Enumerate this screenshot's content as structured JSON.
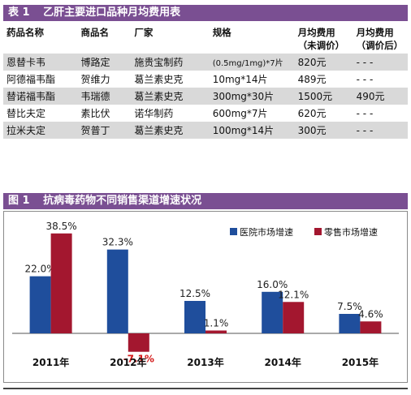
{
  "table": {
    "label": "表 1",
    "title": "乙肝主要进口品种月均费用表",
    "headers": {
      "name": "药品名称",
      "trade": "商品名",
      "manufacturer": "厂家",
      "spec": "规格",
      "before_1": "月均费用",
      "before_2": "（未调价）",
      "after_1": "月均费用",
      "after_2": "（调价后）"
    },
    "rows": [
      {
        "name": "恩替卡韦",
        "trade": "博路定",
        "manufacturer": "施贵宝制药",
        "spec": "(0.5mg/1mg)*7片",
        "before": "820元",
        "after": "- - -"
      },
      {
        "name": "阿德福韦酯",
        "trade": "贺维力",
        "manufacturer": "葛兰素史克",
        "spec": "10mg*14片",
        "before": "489元",
        "after": "- - -"
      },
      {
        "name": "替诺福韦酯",
        "trade": "韦瑞德",
        "manufacturer": "葛兰素史克",
        "spec": "300mg*30片",
        "before": "1500元",
        "after": "490元"
      },
      {
        "name": "替比夫定",
        "trade": "素比伏",
        "manufacturer": "诺华制药",
        "spec": "600mg*7片",
        "before": "620元",
        "after": "- - -"
      },
      {
        "name": "拉米夫定",
        "trade": "贺普丁",
        "manufacturer": "葛兰素史克",
        "spec": "100mg*14片",
        "before": "300元",
        "after": "- - -"
      }
    ]
  },
  "figure": {
    "label": "图 1",
    "title": "抗病毒药物不同销售渠道增速状况"
  },
  "chart_data": {
    "type": "bar",
    "categories": [
      "2011年",
      "2012年",
      "2013年",
      "2014年",
      "2015年"
    ],
    "series": [
      {
        "name": "医院市场增速",
        "values": [
          22.0,
          32.3,
          12.5,
          16.0,
          7.5
        ],
        "labels": [
          "22.0%",
          "32.3%",
          "12.5%",
          "16.0%",
          "7.5%"
        ],
        "color": "#1f4e9c"
      },
      {
        "name": "零售市场增速",
        "values": [
          38.5,
          -7.1,
          1.1,
          12.1,
          4.6
        ],
        "labels": [
          "38.5%",
          "-7.1%",
          "1.1%",
          "12.1%",
          "4.6%"
        ],
        "color": "#a3172f"
      }
    ],
    "ylim": [
      -10,
      40
    ],
    "legend": "top-right",
    "grid": false,
    "negative_label_color": "#d41a1a"
  }
}
